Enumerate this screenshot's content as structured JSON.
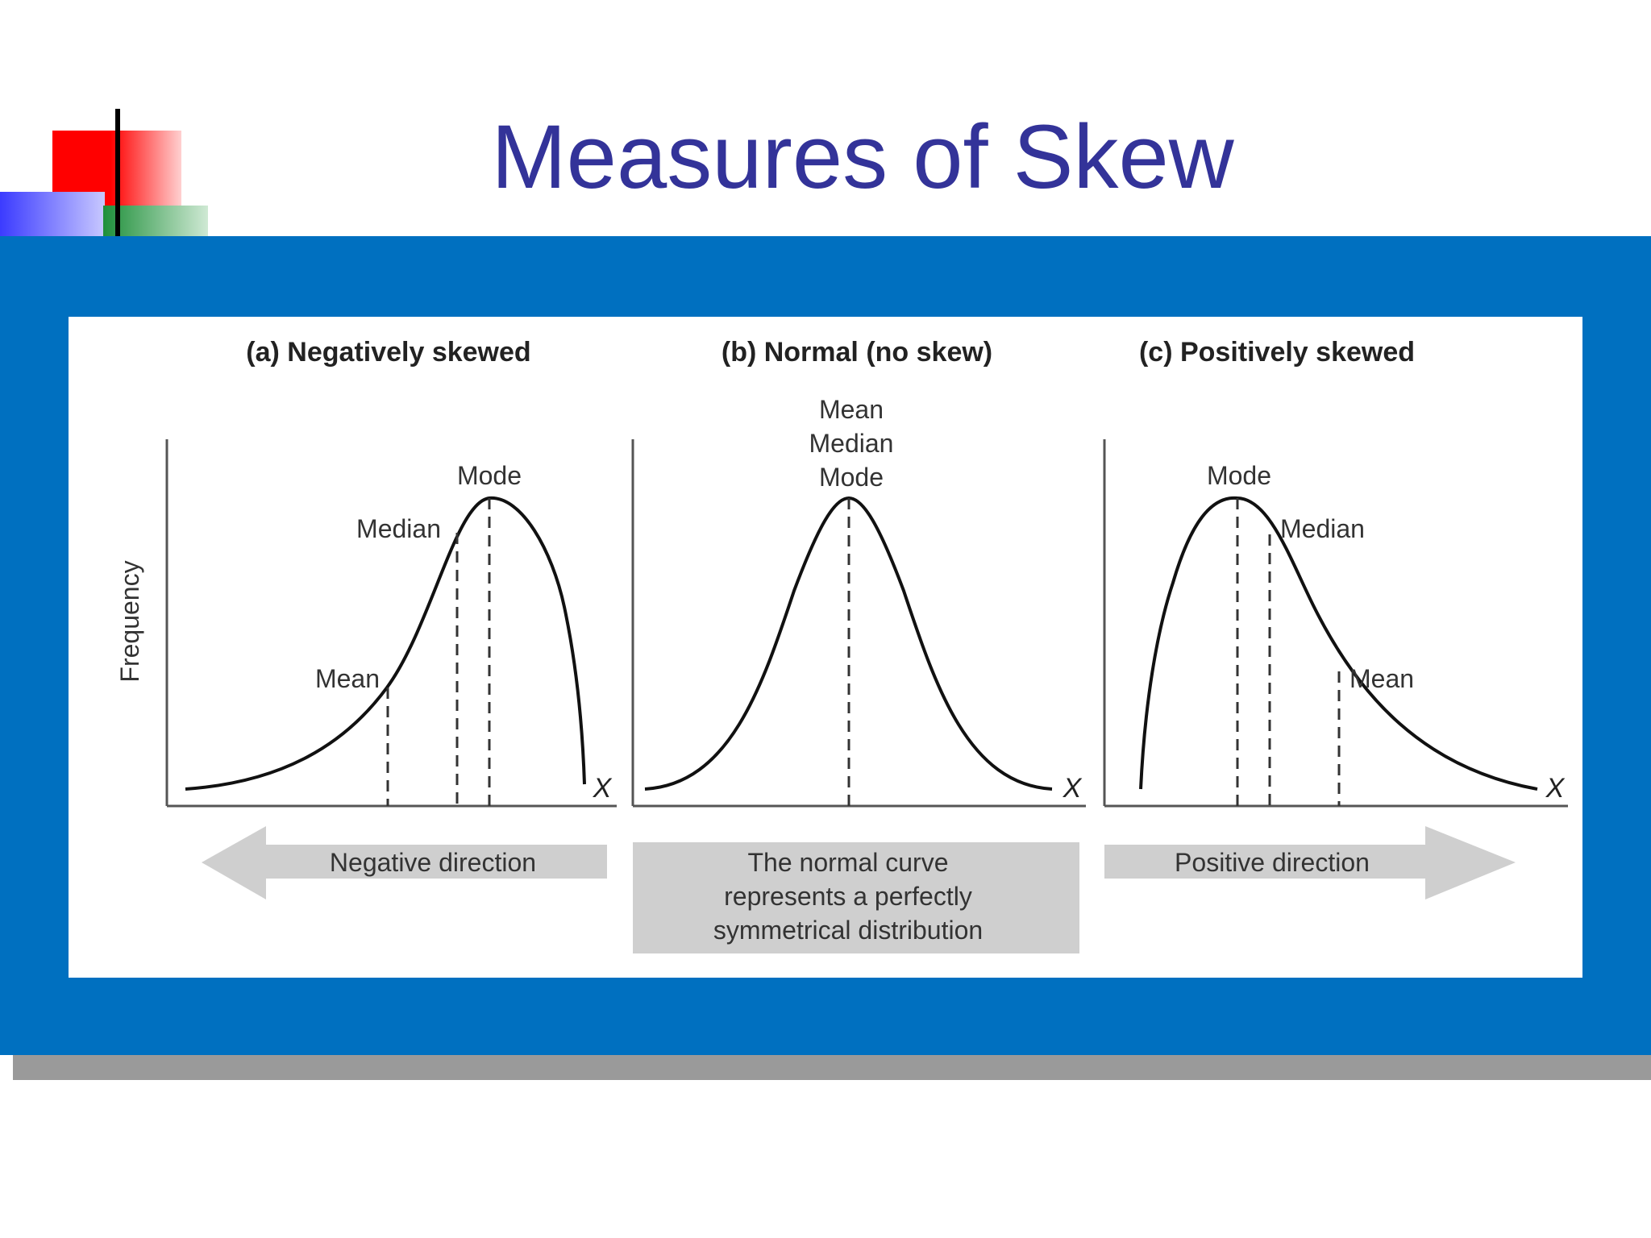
{
  "slide": {
    "title": "Measures of Skew",
    "colors": {
      "title": "#333399",
      "band": "#0070c0",
      "shadow": "#9a9a9a"
    }
  },
  "figure": {
    "y_axis_label": "Frequency",
    "x_axis_symbol": "X",
    "panels": [
      {
        "key": "a",
        "heading": "(a) Negatively skewed",
        "labels": {
          "mode": "Mode",
          "median": "Median",
          "mean": "Mean"
        },
        "caption": "Negative direction",
        "arrow": "left-arrow"
      },
      {
        "key": "b",
        "heading": "(b) Normal (no skew)",
        "labels": {
          "mean": "Mean",
          "median": "Median",
          "mode": "Mode"
        },
        "caption_lines": [
          "The normal curve",
          "represents a perfectly",
          "symmetrical distribution"
        ]
      },
      {
        "key": "c",
        "heading": "(c) Positively skewed",
        "labels": {
          "mode": "Mode",
          "median": "Median",
          "mean": "Mean"
        },
        "caption": "Positive direction",
        "arrow": "right-arrow"
      }
    ]
  }
}
